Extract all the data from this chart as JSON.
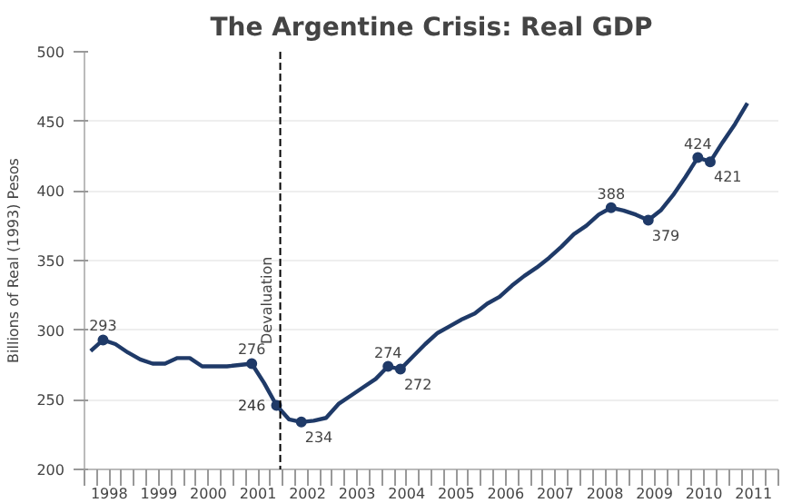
{
  "chart_data": {
    "type": "line",
    "title": "The Argentine Crisis: Real GDP",
    "ylabel": "Billions of Real (1993) Pesos",
    "x": [
      1998.125,
      1998.375,
      1998.625,
      1998.875,
      1999.125,
      1999.375,
      1999.625,
      1999.875,
      2000.125,
      2000.375,
      2000.625,
      2000.875,
      2001.125,
      2001.375,
      2001.625,
      2001.875,
      2002.125,
      2002.375,
      2002.625,
      2002.875,
      2003.125,
      2003.375,
      2003.625,
      2003.875,
      2004.125,
      2004.375,
      2004.625,
      2004.875,
      2005.125,
      2005.375,
      2005.625,
      2005.875,
      2006.125,
      2006.375,
      2006.625,
      2006.875,
      2007.125,
      2007.375,
      2007.625,
      2007.875,
      2008.125,
      2008.375,
      2008.625,
      2008.875,
      2009.125,
      2009.375,
      2009.625,
      2009.875,
      2010.125,
      2010.375,
      2010.625,
      2010.875,
      2011.125,
      2011.375
    ],
    "series": [
      {
        "color": "#1f3a68",
        "values": [
          285,
          293,
          290,
          284,
          279,
          276,
          276,
          280,
          280,
          274,
          274,
          274,
          275,
          276,
          262,
          246,
          236,
          234,
          235,
          237,
          247,
          253,
          259,
          265,
          274,
          272,
          281,
          290,
          298,
          303,
          308,
          312,
          319,
          324,
          332,
          339,
          345,
          352,
          360,
          369,
          375,
          383,
          388,
          386,
          383,
          379,
          386,
          397,
          410,
          424,
          421,
          435,
          448,
          463
        ],
        "value_labels": [
          null,
          "293",
          null,
          null,
          null,
          null,
          null,
          null,
          null,
          null,
          null,
          null,
          null,
          "276",
          null,
          "246",
          null,
          "234",
          null,
          null,
          null,
          null,
          null,
          null,
          "274",
          "272",
          null,
          null,
          null,
          null,
          null,
          null,
          null,
          null,
          null,
          null,
          null,
          null,
          null,
          null,
          null,
          null,
          "388",
          null,
          null,
          "379",
          null,
          null,
          null,
          "424",
          "421",
          null,
          null,
          null
        ]
      }
    ],
    "xlim": [
      1998,
      2012
    ],
    "xticks": [
      {
        "value": 1998,
        "label": null
      },
      {
        "value": 1998.25,
        "label": null
      },
      {
        "value": 1998.5,
        "label": "1998"
      },
      {
        "value": 1998.75,
        "label": null
      },
      {
        "value": 1999,
        "label": null
      },
      {
        "value": 1999.25,
        "label": null
      },
      {
        "value": 1999.5,
        "label": "1999"
      },
      {
        "value": 1999.75,
        "label": null
      },
      {
        "value": 2000,
        "label": null
      },
      {
        "value": 2000.25,
        "label": null
      },
      {
        "value": 2000.5,
        "label": "2000"
      },
      {
        "value": 2000.75,
        "label": null
      },
      {
        "value": 2001,
        "label": null
      },
      {
        "value": 2001.25,
        "label": null
      },
      {
        "value": 2001.5,
        "label": "2001"
      },
      {
        "value": 2001.75,
        "label": null
      },
      {
        "value": 2002,
        "label": null
      },
      {
        "value": 2002.25,
        "label": null
      },
      {
        "value": 2002.5,
        "label": "2002"
      },
      {
        "value": 2002.75,
        "label": null
      },
      {
        "value": 2003,
        "label": null
      },
      {
        "value": 2003.25,
        "label": null
      },
      {
        "value": 2003.5,
        "label": "2003"
      },
      {
        "value": 2003.75,
        "label": null
      },
      {
        "value": 2004,
        "label": null
      },
      {
        "value": 2004.25,
        "label": null
      },
      {
        "value": 2004.5,
        "label": "2004"
      },
      {
        "value": 2004.75,
        "label": null
      },
      {
        "value": 2005,
        "label": null
      },
      {
        "value": 2005.25,
        "label": null
      },
      {
        "value": 2005.5,
        "label": "2005"
      },
      {
        "value": 2005.75,
        "label": null
      },
      {
        "value": 2006,
        "label": null
      },
      {
        "value": 2006.25,
        "label": null
      },
      {
        "value": 2006.5,
        "label": "2006"
      },
      {
        "value": 2006.75,
        "label": null
      },
      {
        "value": 2007,
        "label": null
      },
      {
        "value": 2007.25,
        "label": null
      },
      {
        "value": 2007.5,
        "label": "2007"
      },
      {
        "value": 2007.75,
        "label": null
      },
      {
        "value": 2008,
        "label": null
      },
      {
        "value": 2008.25,
        "label": null
      },
      {
        "value": 2008.5,
        "label": "2008"
      },
      {
        "value": 2008.75,
        "label": null
      },
      {
        "value": 2009,
        "label": null
      },
      {
        "value": 2009.25,
        "label": null
      },
      {
        "value": 2009.5,
        "label": "2009"
      },
      {
        "value": 2009.75,
        "label": null
      },
      {
        "value": 2010,
        "label": null
      },
      {
        "value": 2010.25,
        "label": null
      },
      {
        "value": 2010.5,
        "label": "2010"
      },
      {
        "value": 2010.75,
        "label": null
      },
      {
        "value": 2011,
        "label": null
      },
      {
        "value": 2011.25,
        "label": null
      },
      {
        "value": 2011.5,
        "label": "2011"
      },
      {
        "value": 2011.75,
        "label": null
      },
      {
        "value": 2012,
        "label": null
      }
    ],
    "ylim": [
      200,
      500
    ],
    "yticks": [
      200,
      250,
      300,
      350,
      400,
      450,
      500
    ],
    "grid": "y",
    "line_style": "solid",
    "ref_lines": [
      {
        "axis": "x",
        "value": 2001.95,
        "label": "Devaluation",
        "color": "#000000",
        "line_style": "dashed"
      }
    ]
  }
}
